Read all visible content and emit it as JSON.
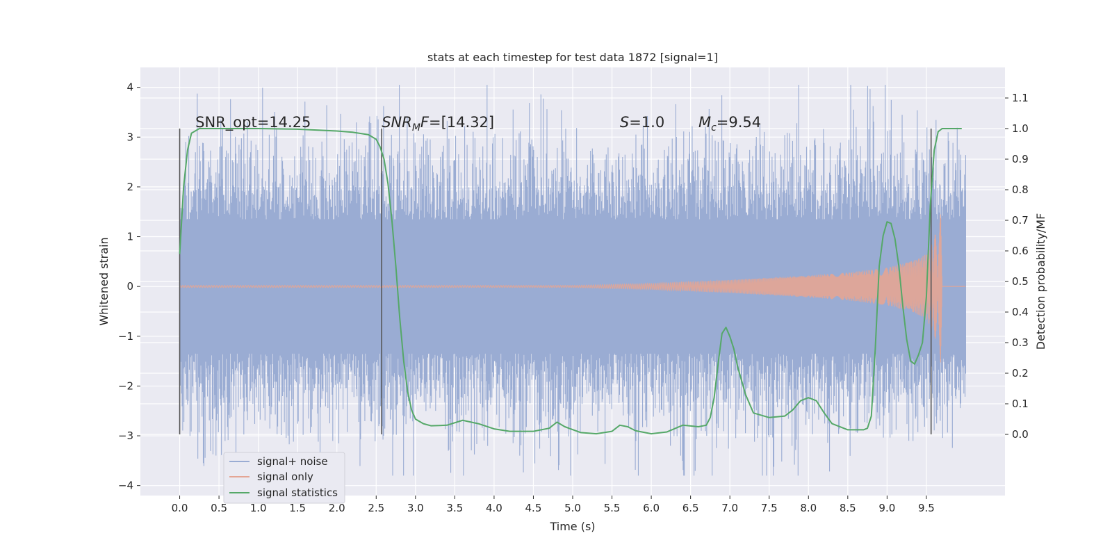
{
  "chart_data": {
    "type": "line",
    "title": "stats at each timestep for test data 1872 [signal=1]",
    "xlabel": "Time (s)",
    "ylabel_left": "Whitened strain",
    "ylabel_right": "Detection probability/MF",
    "xlim": [
      -0.5,
      10.5
    ],
    "ylim_left": [
      -4.2,
      4.4
    ],
    "ylim_right": [
      -0.2,
      1.2
    ],
    "x_ticks": [
      0.0,
      0.5,
      1.0,
      1.5,
      2.0,
      2.5,
      3.0,
      3.5,
      4.0,
      4.5,
      5.0,
      5.5,
      6.0,
      6.5,
      7.0,
      7.5,
      8.0,
      8.5,
      9.0,
      9.5
    ],
    "x_tick_labels": [
      "0.0",
      "0.5",
      "1.0",
      "1.5",
      "2.0",
      "2.5",
      "3.0",
      "3.5",
      "4.0",
      "4.5",
      "5.0",
      "5.5",
      "6.0",
      "6.5",
      "7.0",
      "7.5",
      "8.0",
      "8.5",
      "9.0",
      "9.5"
    ],
    "y_left_ticks": [
      -4,
      -3,
      -2,
      -1,
      0,
      1,
      2,
      3,
      4
    ],
    "y_left_tick_labels": [
      "−4",
      "−3",
      "−2",
      "−1",
      "0",
      "1",
      "2",
      "3",
      "4"
    ],
    "y_right_ticks": [
      0.0,
      0.1,
      0.2,
      0.3,
      0.4,
      0.5,
      0.6,
      0.7,
      0.8,
      0.9,
      1.0,
      1.1
    ],
    "y_right_tick_labels": [
      "0.0",
      "0.1",
      "0.2",
      "0.3",
      "0.4",
      "0.5",
      "0.6",
      "0.7",
      "0.8",
      "0.9",
      "1.0",
      "1.1"
    ],
    "grid": true,
    "legend_position": "lower-left",
    "annotations": [
      {
        "text": "SNR_opt=14.25",
        "x": 0.2,
        "y": 3.2
      },
      {
        "text": "=[14.32]",
        "math": "SNR",
        "sub": "M",
        "tail": "F",
        "x": 2.57,
        "y": 3.2
      },
      {
        "text": "=1.0",
        "math": "S",
        "x": 5.6,
        "y": 3.2
      },
      {
        "text": "=9.54",
        "math": "M",
        "sub": "c",
        "x": 6.6,
        "y": 3.2
      }
    ],
    "vertical_markers": [
      0.0,
      2.57,
      9.56
    ],
    "series": [
      {
        "name": "signal+ noise",
        "color": "#9aacd3",
        "axis": "left",
        "style": "dense noise band",
        "x_range": [
          0.0,
          10.0
        ],
        "core_band": [
          -1.35,
          1.35
        ],
        "spike_extent": [
          -3.8,
          4.05
        ]
      },
      {
        "name": "signal only",
        "color": "#e4a594",
        "axis": "left",
        "style": "chirp",
        "envelope": {
          "x": [
            0.0,
            5.0,
            6.0,
            7.0,
            8.0,
            8.5,
            9.0,
            9.3,
            9.5,
            9.6,
            9.65,
            9.68,
            9.7,
            10.0
          ],
          "amplitude": [
            0.02,
            0.02,
            0.06,
            0.13,
            0.22,
            0.28,
            0.38,
            0.5,
            0.65,
            0.95,
            1.4,
            2.0,
            0.0,
            0.0
          ]
        }
      },
      {
        "name": "signal statistics",
        "color": "#55a868",
        "axis": "right",
        "x": [
          0.0,
          0.05,
          0.1,
          0.15,
          0.25,
          0.5,
          1.0,
          1.5,
          2.0,
          2.2,
          2.4,
          2.5,
          2.55,
          2.6,
          2.65,
          2.7,
          2.75,
          2.8,
          2.85,
          2.9,
          2.95,
          3.0,
          3.1,
          3.2,
          3.4,
          3.6,
          3.8,
          4.0,
          4.2,
          4.5,
          4.7,
          4.8,
          4.9,
          5.1,
          5.3,
          5.5,
          5.6,
          5.7,
          5.8,
          6.0,
          6.2,
          6.4,
          6.6,
          6.7,
          6.75,
          6.8,
          6.85,
          6.9,
          6.95,
          7.0,
          7.05,
          7.1,
          7.2,
          7.3,
          7.5,
          7.7,
          7.8,
          7.9,
          8.0,
          8.1,
          8.2,
          8.3,
          8.5,
          8.7,
          8.75,
          8.8,
          8.85,
          8.9,
          8.95,
          9.0,
          9.05,
          9.1,
          9.15,
          9.2,
          9.25,
          9.3,
          9.35,
          9.4,
          9.45,
          9.5,
          9.55,
          9.6,
          9.65,
          9.7,
          9.8,
          9.9,
          9.95
        ],
        "y": [
          0.59,
          0.81,
          0.93,
          0.985,
          1.0,
          1.0,
          1.0,
          0.998,
          0.992,
          0.988,
          0.98,
          0.965,
          0.94,
          0.9,
          0.82,
          0.7,
          0.55,
          0.38,
          0.24,
          0.14,
          0.08,
          0.05,
          0.035,
          0.028,
          0.03,
          0.046,
          0.035,
          0.018,
          0.01,
          0.01,
          0.02,
          0.04,
          0.025,
          0.006,
          0.002,
          0.01,
          0.03,
          0.025,
          0.012,
          0.002,
          0.008,
          0.03,
          0.025,
          0.03,
          0.055,
          0.12,
          0.23,
          0.33,
          0.35,
          0.32,
          0.28,
          0.22,
          0.13,
          0.07,
          0.055,
          0.06,
          0.08,
          0.11,
          0.12,
          0.11,
          0.07,
          0.035,
          0.015,
          0.015,
          0.02,
          0.06,
          0.28,
          0.55,
          0.65,
          0.695,
          0.69,
          0.64,
          0.55,
          0.42,
          0.31,
          0.24,
          0.23,
          0.26,
          0.3,
          0.45,
          0.75,
          0.93,
          0.99,
          1.0,
          1.0,
          1.0,
          1.0
        ]
      }
    ]
  }
}
